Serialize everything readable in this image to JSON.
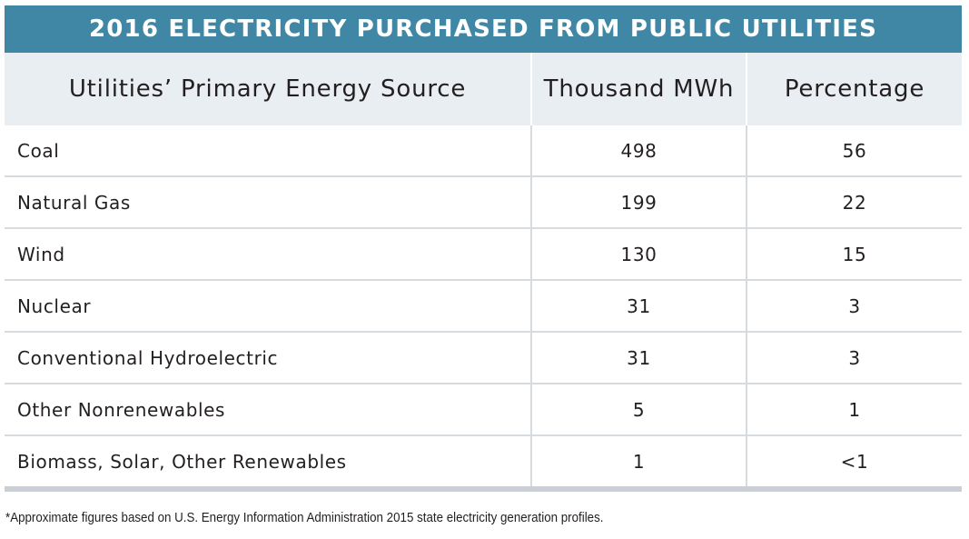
{
  "chart_data": {
    "type": "table",
    "title": "2016 ELECTRICITY PURCHASED FROM PUBLIC UTILITIES",
    "columns": [
      "Utilities’ Primary Energy Source",
      "Thousand MWh",
      "Percentage"
    ],
    "rows": [
      {
        "source": "Coal",
        "mwh": "498",
        "pct": "56"
      },
      {
        "source": "Natural Gas",
        "mwh": "199",
        "pct": "22"
      },
      {
        "source": "Wind",
        "mwh": "130",
        "pct": "15"
      },
      {
        "source": "Nuclear",
        "mwh": "31",
        "pct": "3"
      },
      {
        "source": "Conventional Hydroelectric",
        "mwh": "31",
        "pct": "3"
      },
      {
        "source": "Other Nonrenewables",
        "mwh": "5",
        "pct": "1"
      },
      {
        "source": "Biomass, Solar, Other Renewables",
        "mwh": "1",
        "pct": "<1"
      }
    ],
    "footnote": "*Approximate figures based on U.S. Energy Information Administration 2015 state electricity generation profiles."
  },
  "colors": {
    "title_bg": "#3f87a4",
    "header_bg": "#e9eef2",
    "grid": "#d6dbdf",
    "bottom_rule": "#c9cfd4",
    "text": "#231f20"
  }
}
